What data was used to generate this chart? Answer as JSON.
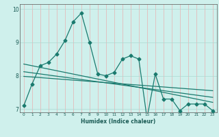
{
  "title": "",
  "xlabel": "Humidex (Indice chaleur)",
  "bg_color": "#cff0ec",
  "grid_color": "#aad8d2",
  "line_color": "#1a7a6e",
  "xlim": [
    -0.5,
    23.5
  ],
  "ylim": [
    6.9,
    10.15
  ],
  "yticks": [
    7,
    8,
    9,
    10
  ],
  "xticks": [
    0,
    1,
    2,
    3,
    4,
    5,
    6,
    7,
    8,
    9,
    10,
    11,
    12,
    13,
    14,
    15,
    16,
    17,
    18,
    19,
    20,
    21,
    22,
    23
  ],
  "series1_x": [
    0,
    1,
    2,
    3,
    4,
    5,
    6,
    7,
    8,
    9,
    10,
    11,
    12,
    13,
    14,
    15,
    16,
    17,
    18,
    19,
    20,
    21,
    22,
    23
  ],
  "series1_y": [
    7.1,
    7.75,
    8.3,
    8.4,
    8.65,
    9.05,
    9.62,
    9.88,
    9.0,
    8.05,
    8.0,
    8.1,
    8.5,
    8.6,
    8.5,
    6.72,
    8.05,
    7.3,
    7.3,
    6.95,
    7.15,
    7.15,
    7.15,
    6.95
  ],
  "series2_x": [
    0,
    23
  ],
  "series2_y": [
    8.35,
    7.2
  ],
  "series3_x": [
    0,
    23
  ],
  "series3_y": [
    7.98,
    7.55
  ],
  "series4_x": [
    0,
    23
  ],
  "series4_y": [
    8.12,
    7.35
  ],
  "markersize": 2.5,
  "linewidth": 0.9
}
